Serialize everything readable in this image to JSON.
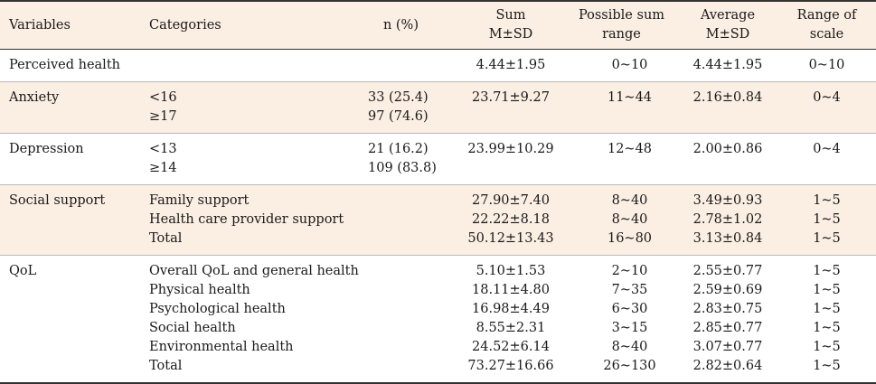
{
  "headers": {
    "variables": "Variables",
    "categories": "Categories",
    "n": "n (%)",
    "sum_line1": "Sum",
    "sum_line2": "M±SD",
    "psr_line1": "Possible sum",
    "psr_line2": "range",
    "avg_line1": "Average",
    "avg_line2": "M±SD",
    "rng_line1": "Range of",
    "rng_line2": "scale"
  },
  "rows": [
    {
      "variable": "Perceived health",
      "categories": [
        ""
      ],
      "n": [
        ""
      ],
      "sum": [
        "4.44±1.95"
      ],
      "possible_sum_range": [
        "0~10"
      ],
      "average": [
        "4.44±1.95"
      ],
      "range_of_scale": [
        "0~10"
      ]
    },
    {
      "variable": "Anxiety",
      "categories": [
        "<16",
        "≥17"
      ],
      "n": [
        "33 (25.4)",
        "97 (74.6)"
      ],
      "sum": [
        "23.71±9.27"
      ],
      "possible_sum_range": [
        "11~44"
      ],
      "average": [
        "2.16±0.84"
      ],
      "range_of_scale": [
        "0~4"
      ]
    },
    {
      "variable": "Depression",
      "categories": [
        "<13",
        "≥14"
      ],
      "n": [
        "21 (16.2)",
        "109 (83.8)"
      ],
      "sum": [
        "23.99±10.29"
      ],
      "possible_sum_range": [
        "12~48"
      ],
      "average": [
        "2.00±0.86"
      ],
      "range_of_scale": [
        "0~4"
      ]
    },
    {
      "variable": "Social support",
      "categories": [
        "Family support",
        "Health care provider support",
        "Total"
      ],
      "n": [
        "",
        "",
        ""
      ],
      "sum": [
        "27.90±7.40",
        "22.22±8.18",
        "50.12±13.43"
      ],
      "possible_sum_range": [
        "8~40",
        "8~40",
        "16~80"
      ],
      "average": [
        "3.49±0.93",
        "2.78±1.02",
        "3.13±0.84"
      ],
      "range_of_scale": [
        "1~5",
        "1~5",
        "1~5"
      ]
    },
    {
      "variable": "QoL",
      "categories": [
        "Overall QoL and general health",
        "Physical health",
        "Psychological health",
        "Social health",
        "Environmental health",
        "Total"
      ],
      "n": [
        "",
        "",
        "",
        "",
        "",
        ""
      ],
      "sum": [
        "5.10±1.53",
        "18.11±4.80",
        "16.98±4.49",
        "8.55±2.31",
        "24.52±6.14",
        "73.27±16.66"
      ],
      "possible_sum_range": [
        "2~10",
        "7~35",
        "6~30",
        "3~15",
        "8~40",
        "26~130"
      ],
      "average": [
        "2.55±0.77",
        "2.59±0.69",
        "2.83±0.75",
        "2.85±0.77",
        "3.07±0.77",
        "2.82±0.64"
      ],
      "range_of_scale": [
        "1~5",
        "1~5",
        "1~5",
        "1~5",
        "1~5",
        "1~5"
      ]
    }
  ]
}
